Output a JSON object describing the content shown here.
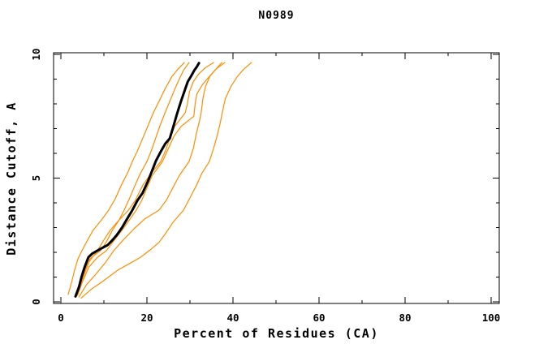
{
  "chart_data": {
    "type": "line",
    "title": "N0989",
    "xlabel": "Percent of Residues (CA)",
    "ylabel": "Distance Cutoff, A",
    "xlim": [
      0,
      100
    ],
    "ylim": [
      0,
      10
    ],
    "x_major_ticks": [
      0,
      20,
      40,
      60,
      80,
      100
    ],
    "x_minor_ticks": [
      10,
      30,
      50,
      70,
      90
    ],
    "y_major_ticks": [
      0,
      5,
      10
    ],
    "y_minor_ticks": [
      1,
      2,
      3,
      4,
      6,
      7,
      8,
      9
    ],
    "grid": false,
    "legend": "none",
    "colors": {
      "model_curve": "#ff8c00",
      "highlighted_curve": "#000000",
      "frame": "#000000",
      "background": "#ffffff"
    },
    "series": [
      {
        "name": "model-curve-1",
        "color": "#ff8c00",
        "width": 1.2,
        "points": [
          [
            1.7,
            0.3
          ],
          [
            2.5,
            0.8
          ],
          [
            3.2,
            1.3
          ],
          [
            4.0,
            1.75
          ],
          [
            4.9,
            2.07
          ],
          [
            6.2,
            2.5
          ],
          [
            7.5,
            2.9
          ],
          [
            9.4,
            3.3
          ],
          [
            11.1,
            3.7
          ],
          [
            12.6,
            4.15
          ],
          [
            14.0,
            4.7
          ],
          [
            15.5,
            5.2
          ],
          [
            16.6,
            5.67
          ],
          [
            17.8,
            6.1
          ],
          [
            19.0,
            6.6
          ],
          [
            20.2,
            7.1
          ],
          [
            21.5,
            7.64
          ],
          [
            22.8,
            8.1
          ],
          [
            24.2,
            8.6
          ],
          [
            25.8,
            9.1
          ],
          [
            27.2,
            9.4
          ],
          [
            28.7,
            9.67
          ]
        ]
      },
      {
        "name": "model-curve-2",
        "color": "#ff8c00",
        "width": 1.2,
        "points": [
          [
            3.8,
            0.26
          ],
          [
            4.6,
            0.8
          ],
          [
            5.6,
            1.3
          ],
          [
            6.8,
            1.75
          ],
          [
            9.2,
            2.07
          ],
          [
            10.5,
            2.4
          ],
          [
            12.0,
            2.9
          ],
          [
            13.5,
            3.3
          ],
          [
            14.7,
            3.7
          ],
          [
            16.0,
            4.2
          ],
          [
            17.2,
            4.7
          ],
          [
            18.5,
            5.2
          ],
          [
            20.0,
            5.67
          ],
          [
            21.0,
            6.1
          ],
          [
            22.0,
            6.6
          ],
          [
            23.0,
            7.1
          ],
          [
            24.2,
            7.64
          ],
          [
            25.3,
            8.1
          ],
          [
            26.5,
            8.6
          ],
          [
            27.5,
            9.0
          ],
          [
            28.5,
            9.35
          ],
          [
            29.8,
            9.67
          ]
        ]
      },
      {
        "name": "model-curve-3",
        "color": "#ff8c00",
        "width": 1.2,
        "points": [
          [
            3.6,
            0.24
          ],
          [
            5.0,
            0.9
          ],
          [
            6.5,
            1.6
          ],
          [
            8.5,
            2.07
          ],
          [
            10.0,
            2.5
          ],
          [
            11.5,
            2.9
          ],
          [
            13.5,
            3.3
          ],
          [
            15.7,
            3.7
          ],
          [
            17.3,
            4.1
          ],
          [
            19.0,
            4.7
          ],
          [
            21.0,
            5.2
          ],
          [
            23.2,
            5.67
          ],
          [
            24.3,
            6.1
          ],
          [
            25.3,
            6.6
          ],
          [
            26.5,
            7.1
          ],
          [
            28.9,
            7.64
          ],
          [
            29.4,
            8.0
          ],
          [
            29.9,
            8.5
          ],
          [
            30.8,
            8.9
          ],
          [
            32.0,
            9.2
          ],
          [
            33.5,
            9.45
          ],
          [
            35.5,
            9.67
          ]
        ]
      },
      {
        "name": "model-curve-4",
        "color": "#ff8c00",
        "width": 1.2,
        "points": [
          [
            3.9,
            0.28
          ],
          [
            5.0,
            0.8
          ],
          [
            6.5,
            1.4
          ],
          [
            8.5,
            1.8
          ],
          [
            10.6,
            2.07
          ],
          [
            12.0,
            2.4
          ],
          [
            13.8,
            2.8
          ],
          [
            15.5,
            3.2
          ],
          [
            17.5,
            3.7
          ],
          [
            18.8,
            4.1
          ],
          [
            20.0,
            4.6
          ],
          [
            21.2,
            5.1
          ],
          [
            23.6,
            5.67
          ],
          [
            25.0,
            6.2
          ],
          [
            26.3,
            6.7
          ],
          [
            28.0,
            7.1
          ],
          [
            30.9,
            7.5
          ],
          [
            31.2,
            8.0
          ],
          [
            31.6,
            8.4
          ],
          [
            33.0,
            8.8
          ],
          [
            35.0,
            9.2
          ],
          [
            36.3,
            9.45
          ],
          [
            37.4,
            9.67
          ]
        ]
      },
      {
        "name": "model-curve-5",
        "color": "#ff8c00",
        "width": 1.2,
        "points": [
          [
            4.2,
            0.2
          ],
          [
            6.0,
            0.7
          ],
          [
            8.3,
            1.15
          ],
          [
            10.4,
            1.6
          ],
          [
            12.3,
            2.07
          ],
          [
            14.5,
            2.5
          ],
          [
            17.0,
            2.95
          ],
          [
            19.5,
            3.35
          ],
          [
            22.8,
            3.7
          ],
          [
            24.5,
            4.1
          ],
          [
            26.0,
            4.6
          ],
          [
            27.5,
            5.1
          ],
          [
            29.8,
            5.67
          ],
          [
            30.8,
            6.2
          ],
          [
            31.5,
            6.8
          ],
          [
            32.2,
            7.3
          ],
          [
            32.6,
            7.64
          ],
          [
            33.0,
            8.2
          ],
          [
            33.6,
            8.7
          ],
          [
            34.6,
            9.1
          ],
          [
            36.0,
            9.4
          ],
          [
            38.1,
            9.67
          ]
        ]
      },
      {
        "name": "model-curve-6",
        "color": "#ff8c00",
        "width": 1.2,
        "points": [
          [
            4.7,
            0.15
          ],
          [
            7.0,
            0.5
          ],
          [
            9.5,
            0.8
          ],
          [
            13.4,
            1.3
          ],
          [
            16.0,
            1.55
          ],
          [
            18.5,
            1.8
          ],
          [
            20.8,
            2.1
          ],
          [
            22.8,
            2.4
          ],
          [
            24.5,
            2.8
          ],
          [
            26.0,
            3.2
          ],
          [
            28.5,
            3.7
          ],
          [
            30.0,
            4.2
          ],
          [
            31.5,
            4.7
          ],
          [
            32.8,
            5.2
          ],
          [
            34.5,
            5.67
          ],
          [
            35.5,
            6.2
          ],
          [
            36.3,
            6.7
          ],
          [
            37.0,
            7.2
          ],
          [
            37.5,
            7.64
          ],
          [
            38.2,
            8.2
          ],
          [
            39.5,
            8.7
          ],
          [
            41.0,
            9.1
          ],
          [
            42.5,
            9.4
          ],
          [
            44.3,
            9.67
          ]
        ]
      },
      {
        "name": "highlighted-curve",
        "color": "#000000",
        "width": 3,
        "points": [
          [
            3.4,
            0.22
          ],
          [
            4.2,
            0.6
          ],
          [
            4.8,
            1.0
          ],
          [
            5.5,
            1.4
          ],
          [
            6.4,
            1.8
          ],
          [
            7.3,
            1.95
          ],
          [
            8.8,
            2.1
          ],
          [
            10.9,
            2.3
          ],
          [
            12.0,
            2.5
          ],
          [
            13.0,
            2.7
          ],
          [
            14.2,
            3.0
          ],
          [
            15.4,
            3.35
          ],
          [
            16.6,
            3.7
          ],
          [
            17.8,
            4.1
          ],
          [
            19.0,
            4.4
          ],
          [
            20.3,
            4.9
          ],
          [
            21.2,
            5.3
          ],
          [
            22.1,
            5.7
          ],
          [
            23.3,
            6.1
          ],
          [
            24.3,
            6.4
          ],
          [
            25.3,
            6.6
          ],
          [
            26.0,
            7.0
          ],
          [
            27.0,
            7.6
          ],
          [
            27.9,
            8.1
          ],
          [
            28.7,
            8.5
          ],
          [
            29.5,
            8.9
          ],
          [
            30.2,
            9.1
          ],
          [
            31.0,
            9.35
          ],
          [
            31.6,
            9.5
          ],
          [
            32.1,
            9.65
          ]
        ]
      }
    ]
  }
}
